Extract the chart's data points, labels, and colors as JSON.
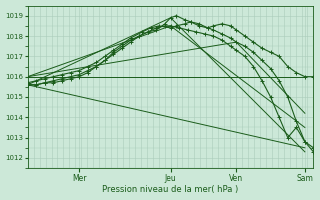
{
  "title": "Pression niveau de la mer( hPa )",
  "bg_color": "#cce8d8",
  "plot_bg_color": "#cce8d8",
  "grid_color": "#aaccbb",
  "line_color": "#1a5c1a",
  "marker_color": "#1a5c1a",
  "ylim": [
    1011.5,
    1019.5
  ],
  "yticks": [
    1012,
    1013,
    1014,
    1015,
    1016,
    1017,
    1018,
    1019
  ],
  "day_labels": [
    "Mer",
    "Jeu",
    "Ven",
    "Sam"
  ],
  "day_positions": [
    0.18,
    0.5,
    0.73,
    0.97
  ],
  "xlim": [
    0,
    1.0
  ],
  "series": [
    {
      "x": [
        0.0,
        0.03,
        0.06,
        0.09,
        0.12,
        0.15,
        0.18,
        0.21,
        0.24,
        0.27,
        0.3,
        0.33,
        0.36,
        0.4,
        0.43,
        0.46,
        0.5,
        0.52,
        0.55,
        0.57,
        0.6,
        0.63,
        0.65,
        0.68,
        0.71,
        0.73,
        0.76,
        0.79,
        0.82,
        0.85,
        0.88,
        0.91,
        0.94,
        0.97,
        1.0
      ],
      "y": [
        1015.7,
        1015.8,
        1015.9,
        1016.0,
        1016.1,
        1016.2,
        1016.3,
        1016.5,
        1016.7,
        1017.0,
        1017.3,
        1017.6,
        1017.9,
        1018.2,
        1018.4,
        1018.5,
        1018.4,
        1018.5,
        1018.6,
        1018.7,
        1018.6,
        1018.4,
        1018.5,
        1018.6,
        1018.5,
        1018.3,
        1018.0,
        1017.7,
        1017.4,
        1017.2,
        1017.0,
        1016.5,
        1016.2,
        1016.0,
        1016.0
      ],
      "has_markers": true
    },
    {
      "x": [
        0.0,
        0.03,
        0.06,
        0.09,
        0.12,
        0.15,
        0.18,
        0.21,
        0.24,
        0.27,
        0.3,
        0.33,
        0.36,
        0.39,
        0.42,
        0.45,
        0.48,
        0.5,
        0.52,
        0.55,
        0.57,
        0.6,
        0.63,
        0.65,
        0.68,
        0.71,
        0.73,
        0.76,
        0.79,
        0.82,
        0.85,
        0.88,
        0.91,
        0.94,
        0.97,
        1.0
      ],
      "y": [
        1015.6,
        1015.6,
        1015.7,
        1015.8,
        1015.9,
        1016.0,
        1016.1,
        1016.3,
        1016.5,
        1016.8,
        1017.2,
        1017.5,
        1017.8,
        1018.0,
        1018.2,
        1018.3,
        1018.6,
        1018.9,
        1019.0,
        1018.8,
        1018.7,
        1018.5,
        1018.4,
        1018.3,
        1018.1,
        1017.9,
        1017.7,
        1017.5,
        1017.2,
        1016.8,
        1016.4,
        1015.8,
        1015.0,
        1013.8,
        1012.8,
        1012.5
      ],
      "has_markers": true
    },
    {
      "x": [
        0.0,
        0.03,
        0.06,
        0.09,
        0.12,
        0.15,
        0.18,
        0.21,
        0.24,
        0.27,
        0.3,
        0.33,
        0.36,
        0.39,
        0.42,
        0.45,
        0.48,
        0.5,
        0.53,
        0.56,
        0.59,
        0.62,
        0.65,
        0.68,
        0.71,
        0.73,
        0.76,
        0.79,
        0.82,
        0.85,
        0.88,
        0.91,
        0.94,
        0.97,
        1.0
      ],
      "y": [
        1015.6,
        1015.6,
        1015.7,
        1015.7,
        1015.8,
        1015.9,
        1016.0,
        1016.2,
        1016.5,
        1016.8,
        1017.1,
        1017.4,
        1017.7,
        1018.0,
        1018.2,
        1018.4,
        1018.5,
        1018.5,
        1018.4,
        1018.3,
        1018.2,
        1018.1,
        1018.0,
        1017.8,
        1017.5,
        1017.3,
        1017.0,
        1016.5,
        1015.8,
        1015.0,
        1014.0,
        1013.0,
        1013.5,
        1012.8,
        1012.3
      ],
      "has_markers": true
    },
    {
      "x": [
        0.0,
        0.73,
        0.97
      ],
      "y": [
        1016.0,
        1016.0,
        1016.0
      ],
      "has_markers": false
    },
    {
      "x": [
        0.0,
        0.73,
        0.97
      ],
      "y": [
        1016.0,
        1017.7,
        1014.2
      ],
      "has_markers": false
    },
    {
      "x": [
        0.0,
        0.5,
        0.97
      ],
      "y": [
        1016.0,
        1018.5,
        1013.5
      ],
      "has_markers": false
    },
    {
      "x": [
        0.0,
        0.97
      ],
      "y": [
        1015.6,
        1012.5
      ],
      "has_markers": false
    },
    {
      "x": [
        0.0,
        0.5,
        0.97
      ],
      "y": [
        1015.6,
        1018.9,
        1012.3
      ],
      "has_markers": false
    }
  ]
}
